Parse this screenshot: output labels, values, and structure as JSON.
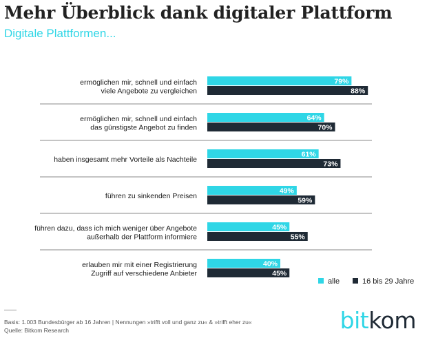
{
  "title": "Mehr Überblick dank digitaler Plattform",
  "subtitle": "Digitale Plattformen...",
  "colors": {
    "alle": "#2fd6e6",
    "young": "#1f2a35",
    "accent": "#2fd6e6"
  },
  "chart_data": {
    "type": "bar",
    "orientation": "horizontal",
    "categories": [
      [
        "ermöglichen mir, schnell und einfach",
        "viele Angebote zu vergleichen"
      ],
      [
        "ermöglichen mir, schnell und einfach",
        "das günstigste Angebot zu finden"
      ],
      [
        "haben insgesamt mehr Vorteile als Nachteile"
      ],
      [
        "führen zu sinkenden Preisen"
      ],
      [
        "führen dazu, dass ich mich weniger über Angebote",
        "außerhalb der Plattform informiere"
      ],
      [
        "erlauben mir mit einer Registrierung",
        "Zugriff auf verschiedene Anbieter"
      ]
    ],
    "series": [
      {
        "name": "alle",
        "values": [
          79,
          64,
          61,
          49,
          45,
          40
        ],
        "labels": [
          "79%",
          "64%",
          "61%",
          "49%",
          "45%",
          "40%"
        ]
      },
      {
        "name": "16 bis 29 Jahre",
        "values": [
          88,
          70,
          73,
          59,
          55,
          45
        ],
        "labels": [
          "88%",
          "70%",
          "73%",
          "59%",
          "55%",
          "45%"
        ]
      }
    ],
    "xlim": [
      0,
      100
    ],
    "legend": "bottom-right",
    "grid": false
  },
  "footer": {
    "basis": "Basis: 1.003 Bundesbürger ab 16 Jahren | Nennungen »trifft voll und ganz zu« & »trifft eher zu«",
    "source": "Quelle: Bitkom Research"
  },
  "logo": {
    "part1": "bit",
    "part2": "kom"
  }
}
